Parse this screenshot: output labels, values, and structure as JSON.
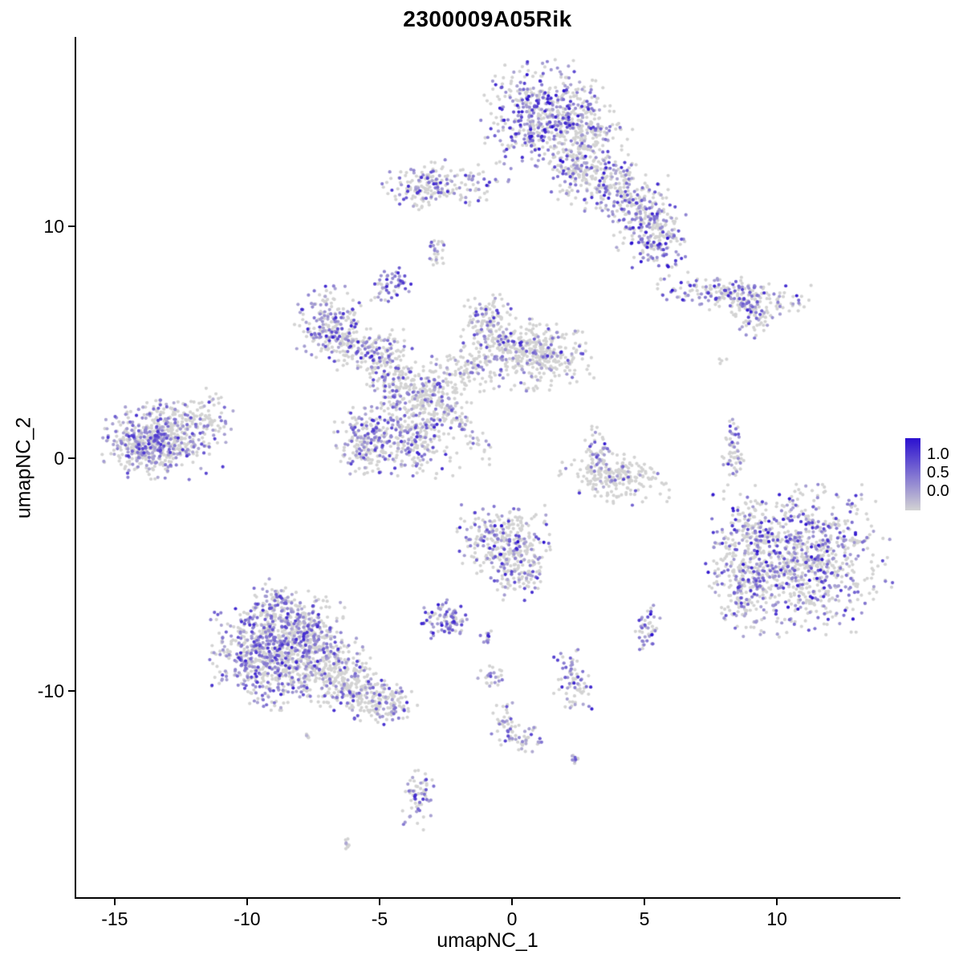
{
  "title": "2300009A05Rik",
  "axes": {
    "x": {
      "label": "umapNC_1",
      "ticks": [
        -15,
        -10,
        -5,
        0,
        5,
        10
      ]
    },
    "y": {
      "label": "umapNC_2",
      "ticks": [
        10,
        0,
        -10
      ]
    }
  },
  "legend": {
    "labels": [
      "1.0",
      "0.5",
      "0.0"
    ],
    "low_color": "#D3D3D3",
    "high_color": "#2B10D0"
  },
  "chart_data": {
    "type": "scatter",
    "title": "2300009A05Rik",
    "xlabel": "umapNC_1",
    "ylabel": "umapNC_2",
    "xlim": [
      -16.45,
      14.6
    ],
    "ylim": [
      -18.9,
      18.1
    ],
    "grid": false,
    "legend_position": "right",
    "color_scale": {
      "low": "#D3D3D3",
      "high": "#2B10D0",
      "domain": [
        0.0,
        1.0
      ],
      "tick_labels": [
        "1.0",
        "0.5",
        "0.0"
      ]
    },
    "point_radius_px": 2.1,
    "representation": "gaussian_cluster_summary",
    "seed": 42,
    "clusters": [
      {
        "cx": 1.0,
        "cy": 14.8,
        "rx": 0.95,
        "ry": 1.05,
        "rot": 0,
        "n": 420,
        "f": 0.55,
        "s": 1.0
      },
      {
        "cx": 2.6,
        "cy": 14.2,
        "rx": 0.85,
        "ry": 0.95,
        "rot": 0,
        "n": 300,
        "f": 0.22,
        "s": 0.8
      },
      {
        "cx": 2.4,
        "cy": 12.4,
        "rx": 0.5,
        "ry": 0.5,
        "rot": 0,
        "n": 90,
        "f": 0.3,
        "s": 0.8
      },
      {
        "cx": 3.8,
        "cy": 11.6,
        "rx": 0.95,
        "ry": 0.6,
        "rot": -15,
        "n": 210,
        "f": 0.4,
        "s": 0.9
      },
      {
        "cx": 5.0,
        "cy": 10.4,
        "rx": 0.55,
        "ry": 0.65,
        "rot": 0,
        "n": 140,
        "f": 0.4,
        "s": 0.9
      },
      {
        "cx": 5.6,
        "cy": 9.3,
        "rx": 0.5,
        "ry": 0.6,
        "rot": 0,
        "n": 130,
        "f": 0.5,
        "s": 1.0
      },
      {
        "cx": -2.5,
        "cy": 11.9,
        "rx": 1.05,
        "ry": 0.45,
        "rot": 0,
        "n": 160,
        "f": 0.3,
        "s": 1.0
      },
      {
        "cx": -3.4,
        "cy": 11.5,
        "rx": 0.4,
        "ry": 0.35,
        "rot": 0,
        "n": 60,
        "f": 0.35,
        "s": 0.9
      },
      {
        "cx": -2.9,
        "cy": 8.9,
        "rx": 0.18,
        "ry": 0.32,
        "rot": 0,
        "n": 26,
        "f": 0.5,
        "s": 0.9
      },
      {
        "cx": -4.6,
        "cy": 7.5,
        "rx": 0.38,
        "ry": 0.38,
        "rot": 0,
        "n": 55,
        "f": 0.5,
        "s": 0.9
      },
      {
        "cx": 8.3,
        "cy": 7.0,
        "rx": 1.35,
        "ry": 0.38,
        "rot": -8,
        "n": 230,
        "f": 0.42,
        "s": 1.0
      },
      {
        "cx": 9.1,
        "cy": 6.2,
        "rx": 0.3,
        "ry": 0.5,
        "rot": 0,
        "n": 50,
        "f": 0.35,
        "s": 0.9
      },
      {
        "cx": -6.9,
        "cy": 5.9,
        "rx": 0.6,
        "ry": 0.75,
        "rot": 0,
        "n": 190,
        "f": 0.45,
        "s": 0.9
      },
      {
        "cx": -6.1,
        "cy": 4.9,
        "rx": 0.5,
        "ry": 0.5,
        "rot": 0,
        "n": 100,
        "f": 0.3,
        "s": 0.9
      },
      {
        "cx": -4.9,
        "cy": 4.4,
        "rx": 0.5,
        "ry": 0.6,
        "rot": 0,
        "n": 120,
        "f": 0.35,
        "s": 0.9
      },
      {
        "cx": -4.3,
        "cy": 3.2,
        "rx": 0.42,
        "ry": 0.5,
        "rot": 0,
        "n": 85,
        "f": 0.3,
        "s": 0.8
      },
      {
        "cx": -0.9,
        "cy": 5.8,
        "rx": 0.5,
        "ry": 0.65,
        "rot": 0,
        "n": 140,
        "f": 0.32,
        "s": 0.9
      },
      {
        "cx": 0.1,
        "cy": 4.9,
        "rx": 0.5,
        "ry": 0.5,
        "rot": 0,
        "n": 100,
        "f": 0.2,
        "s": 0.8
      },
      {
        "cx": 1.3,
        "cy": 4.5,
        "rx": 0.85,
        "ry": 0.7,
        "rot": 0,
        "n": 260,
        "f": 0.25,
        "s": 0.9
      },
      {
        "cx": -1.5,
        "cy": 3.9,
        "rx": 0.7,
        "ry": 0.5,
        "rot": 0,
        "n": 120,
        "f": 0.2,
        "s": 0.8
      },
      {
        "cx": -2.9,
        "cy": 2.8,
        "rx": 0.6,
        "ry": 0.6,
        "rot": 0,
        "n": 150,
        "f": 0.25,
        "s": 0.8
      },
      {
        "cx": -3.7,
        "cy": 1.2,
        "rx": 0.8,
        "ry": 0.9,
        "rot": 0,
        "n": 290,
        "f": 0.35,
        "s": 0.9
      },
      {
        "cx": -5.4,
        "cy": 0.8,
        "rx": 0.6,
        "ry": 0.7,
        "rot": 0,
        "n": 210,
        "f": 0.4,
        "s": 0.9
      },
      {
        "cx": -1.9,
        "cy": 1.5,
        "rx": 1.0,
        "ry": 0.17,
        "rot": -52,
        "n": 70,
        "f": 0.3,
        "s": 0.9
      },
      {
        "cx": -13.2,
        "cy": 0.8,
        "rx": 1.05,
        "ry": 0.75,
        "rot": 0,
        "n": 430,
        "f": 0.45,
        "s": 0.85
      },
      {
        "cx": -13.9,
        "cy": 0.5,
        "rx": 0.5,
        "ry": 0.45,
        "rot": 0,
        "n": 150,
        "f": 0.5,
        "s": 0.85
      },
      {
        "cx": -12.2,
        "cy": 1.8,
        "rx": 0.8,
        "ry": 0.55,
        "rot": 0,
        "n": 90,
        "f": 0.2,
        "s": 0.7
      },
      {
        "cx": 3.2,
        "cy": 0.2,
        "rx": 0.25,
        "ry": 0.6,
        "rot": 0,
        "n": 55,
        "f": 0.35,
        "s": 1.0
      },
      {
        "cx": 3.9,
        "cy": -0.8,
        "rx": 0.95,
        "ry": 0.5,
        "rot": -10,
        "n": 210,
        "f": 0.12,
        "s": 0.8
      },
      {
        "cx": 8.3,
        "cy": 0.3,
        "rx": 0.2,
        "ry": 0.7,
        "rot": 0,
        "n": 60,
        "f": 0.4,
        "s": 0.9
      },
      {
        "cx": 10.8,
        "cy": -4.4,
        "rx": 1.55,
        "ry": 1.45,
        "rot": 0,
        "n": 950,
        "f": 0.4,
        "s": 1.0
      },
      {
        "cx": 8.7,
        "cy": -5.4,
        "rx": 0.5,
        "ry": 1.0,
        "rot": 0,
        "n": 160,
        "f": 0.3,
        "s": 0.9
      },
      {
        "cx": 9.0,
        "cy": -3.0,
        "rx": 0.4,
        "ry": 0.5,
        "rot": 0,
        "n": 70,
        "f": 0.3,
        "s": 0.9
      },
      {
        "cx": -0.4,
        "cy": -3.5,
        "rx": 0.8,
        "ry": 0.7,
        "rot": 0,
        "n": 280,
        "f": 0.35,
        "s": 1.0
      },
      {
        "cx": 0.3,
        "cy": -4.8,
        "rx": 0.5,
        "ry": 0.6,
        "rot": 0,
        "n": 110,
        "f": 0.3,
        "s": 0.9
      },
      {
        "cx": -2.5,
        "cy": -6.9,
        "rx": 0.45,
        "ry": 0.4,
        "rot": 0,
        "n": 95,
        "f": 0.6,
        "s": 1.0
      },
      {
        "cx": -0.9,
        "cy": -7.7,
        "rx": 0.15,
        "ry": 0.15,
        "rot": 0,
        "n": 12,
        "f": 0.6,
        "s": 0.9
      },
      {
        "cx": 5.1,
        "cy": -7.4,
        "rx": 0.22,
        "ry": 0.5,
        "rot": 0,
        "n": 45,
        "f": 0.65,
        "s": 1.0
      },
      {
        "cx": -9.4,
        "cy": -8.6,
        "rx": 0.9,
        "ry": 1.0,
        "rot": 0,
        "n": 560,
        "f": 0.5,
        "s": 0.9
      },
      {
        "cx": -8.0,
        "cy": -7.3,
        "rx": 0.8,
        "ry": 0.75,
        "rot": 0,
        "n": 300,
        "f": 0.45,
        "s": 0.9
      },
      {
        "cx": -7.2,
        "cy": -8.9,
        "rx": 0.85,
        "ry": 0.8,
        "rot": 0,
        "n": 310,
        "f": 0.3,
        "s": 0.85
      },
      {
        "cx": -6.0,
        "cy": -10.0,
        "rx": 0.7,
        "ry": 0.5,
        "rot": -20,
        "n": 180,
        "f": 0.25,
        "s": 0.85
      },
      {
        "cx": -4.7,
        "cy": -10.6,
        "rx": 0.5,
        "ry": 0.4,
        "rot": 0,
        "n": 120,
        "f": 0.3,
        "s": 0.85
      },
      {
        "cx": -9.0,
        "cy": -6.2,
        "rx": 0.4,
        "ry": 0.45,
        "rot": 0,
        "n": 85,
        "f": 0.5,
        "s": 0.9
      },
      {
        "cx": 2.3,
        "cy": -9.5,
        "rx": 0.35,
        "ry": 0.6,
        "rot": 0,
        "n": 75,
        "f": 0.4,
        "s": 0.9
      },
      {
        "cx": -0.8,
        "cy": -9.4,
        "rx": 0.25,
        "ry": 0.25,
        "rot": 0,
        "n": 25,
        "f": 0.3,
        "s": 0.8
      },
      {
        "cx": -0.2,
        "cy": -11.4,
        "rx": 0.25,
        "ry": 0.55,
        "rot": 0,
        "n": 45,
        "f": 0.3,
        "s": 0.8
      },
      {
        "cx": 0.6,
        "cy": -12.2,
        "rx": 0.3,
        "ry": 0.3,
        "rot": 0,
        "n": 30,
        "f": 0.4,
        "s": 0.8
      },
      {
        "cx": 2.4,
        "cy": -12.9,
        "rx": 0.12,
        "ry": 0.12,
        "rot": 0,
        "n": 10,
        "f": 0.5,
        "s": 0.7
      },
      {
        "cx": -3.5,
        "cy": -14.6,
        "rx": 0.3,
        "ry": 0.75,
        "rot": 0,
        "n": 65,
        "f": 0.45,
        "s": 0.9
      },
      {
        "cx": -6.2,
        "cy": -16.6,
        "rx": 0.12,
        "ry": 0.12,
        "rot": 0,
        "n": 9,
        "f": 0.3,
        "s": 0.6
      },
      {
        "cx": -7.7,
        "cy": -11.9,
        "rx": 0.1,
        "ry": 0.1,
        "rot": 0,
        "n": 5,
        "f": 0.2,
        "s": 0.5
      },
      {
        "cx": 8.0,
        "cy": 4.2,
        "rx": 0.1,
        "ry": 0.1,
        "rot": 0,
        "n": 4,
        "f": 0.1,
        "s": 0.5
      },
      {
        "cx": -11.3,
        "cy": 2.6,
        "rx": 0.12,
        "ry": 0.12,
        "rot": 0,
        "n": 5,
        "f": 0.4,
        "s": 0.8
      }
    ]
  }
}
